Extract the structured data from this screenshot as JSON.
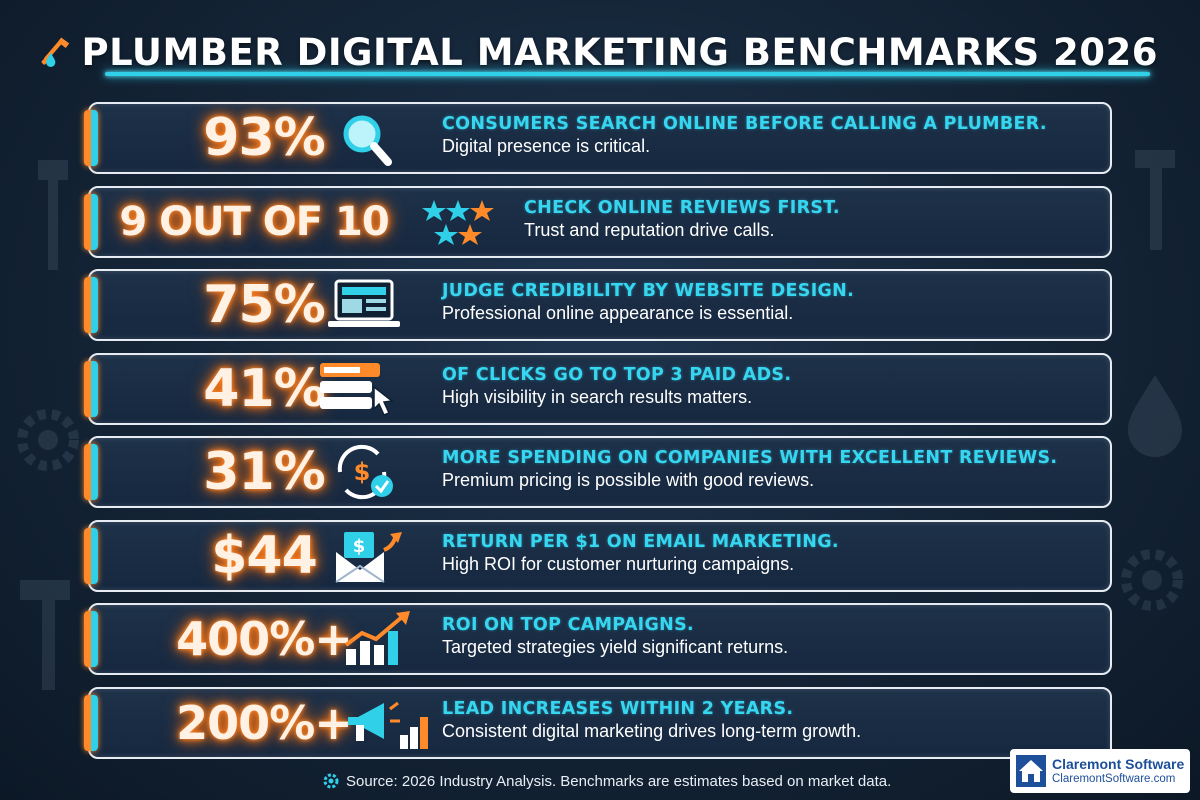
{
  "header": {
    "title": "PLUMBER DIGITAL MARKETING BENCHMARKS 2026",
    "icon": "wrench-water-drop-icon"
  },
  "colors": {
    "background": "#162840",
    "accent_cyan": "#37d6f0",
    "accent_orange": "#ff8a2a",
    "text_white": "#ffffff"
  },
  "stats": [
    {
      "value": "93%",
      "headline": "CONSUMERS SEARCH ONLINE BEFORE CALLING A PLUMBER.",
      "sub": "Digital presence is critical.",
      "icon": "magnifying-glass-icon"
    },
    {
      "value": "9 OUT OF 10",
      "headline": "CHECK ONLINE REVIEWS FIRST.",
      "sub": "Trust and reputation drive calls.",
      "icon": "star-rating-icon"
    },
    {
      "value": "75%",
      "headline": "JUDGE CREDIBILITY BY WEBSITE DESIGN.",
      "sub": "Professional online appearance is essential.",
      "icon": "laptop-icon"
    },
    {
      "value": "41%",
      "headline": "OF CLICKS GO TO TOP 3 PAID ADS.",
      "sub": "High visibility in search results matters.",
      "icon": "search-results-cursor-icon"
    },
    {
      "value": "31%",
      "headline": "MORE SPENDING ON COMPANIES WITH EXCELLENT REVIEWS.",
      "sub": "Premium pricing is possible with good reviews.",
      "icon": "dollar-cycle-check-icon"
    },
    {
      "value": "$44",
      "headline": "RETURN PER $1 ON EMAIL MARKETING.",
      "sub": "High ROI for customer nurturing campaigns.",
      "icon": "dollar-envelope-icon"
    },
    {
      "value": "400%+",
      "headline": "ROI ON TOP CAMPAIGNS.",
      "sub": "Targeted strategies yield significant returns.",
      "icon": "growth-chart-arrow-icon"
    },
    {
      "value": "200%+",
      "headline": "LEAD INCREASES WITHIN 2 YEARS.",
      "sub": "Consistent digital marketing drives long-term growth.",
      "icon": "megaphone-bar-chart-icon"
    }
  ],
  "footer": {
    "source": "Source: 2026 Industry Analysis. Benchmarks are estimates based on market data.",
    "source_icon": "gear-icon"
  },
  "brand": {
    "name": "Claremont Software",
    "url": "ClaremontSoftware.com",
    "icon": "house-logo-icon"
  }
}
